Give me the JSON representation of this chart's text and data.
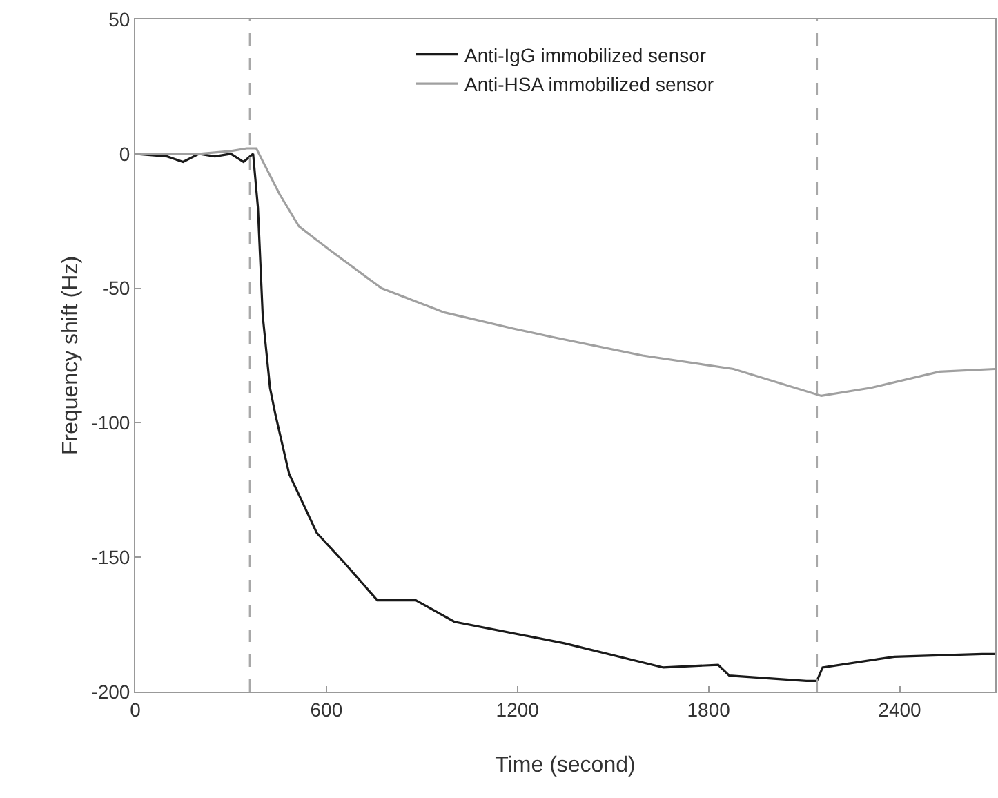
{
  "chart_data": {
    "type": "line",
    "xlabel": "Time (second)",
    "ylabel": "Frequency shift (Hz)",
    "xlim": [
      0,
      2700
    ],
    "xticks": [
      0,
      600,
      1200,
      1800,
      2400
    ],
    "ylim": [
      -200,
      50
    ],
    "yticks": [
      -200,
      -150,
      -100,
      -50,
      0,
      50
    ],
    "grid": false,
    "legend": "top",
    "marker": "none",
    "line_style": "solid",
    "ref_lines": [
      {
        "axis": "x",
        "value": 360,
        "color": "#a8a8a8",
        "line_style": "dashed"
      },
      {
        "axis": "x",
        "value": 2140,
        "color": "#a8a8a8",
        "line_style": "dashed"
      }
    ],
    "series": [
      {
        "name": "Anti-IgG immobilized sensor",
        "color": "#1a1a1a",
        "x": [
          0,
          100,
          150,
          200,
          250,
          300,
          340,
          370,
          385,
          400,
          423,
          440,
          483,
          570,
          656,
          760,
          881,
          1002,
          1347,
          1658,
          1830,
          1865,
          2107,
          2140,
          2158,
          2383,
          2659,
          2700
        ],
        "values": [
          0,
          -1,
          -3,
          0,
          -1,
          0,
          -3,
          0,
          -20,
          -60,
          -87,
          -97,
          -119,
          -141,
          -152,
          -166,
          -166,
          -174,
          -182,
          -191,
          -190,
          -194,
          -196,
          -196,
          -191,
          -187,
          -186,
          -186
        ]
      },
      {
        "name": "Anti-HSA immobilized sensor",
        "color": "#a0a0a0",
        "x": [
          0,
          100,
          200,
          300,
          350,
          380,
          397,
          453,
          514,
          613,
          773,
          971,
          1187,
          1304,
          1593,
          1878,
          2154,
          2310,
          2525,
          2698
        ],
        "values": [
          0,
          0,
          0,
          1,
          2,
          2,
          -2,
          -15,
          -27,
          -36,
          -50,
          -59,
          -65,
          -68,
          -75,
          -80,
          -90,
          -87,
          -81,
          -80
        ]
      }
    ]
  }
}
